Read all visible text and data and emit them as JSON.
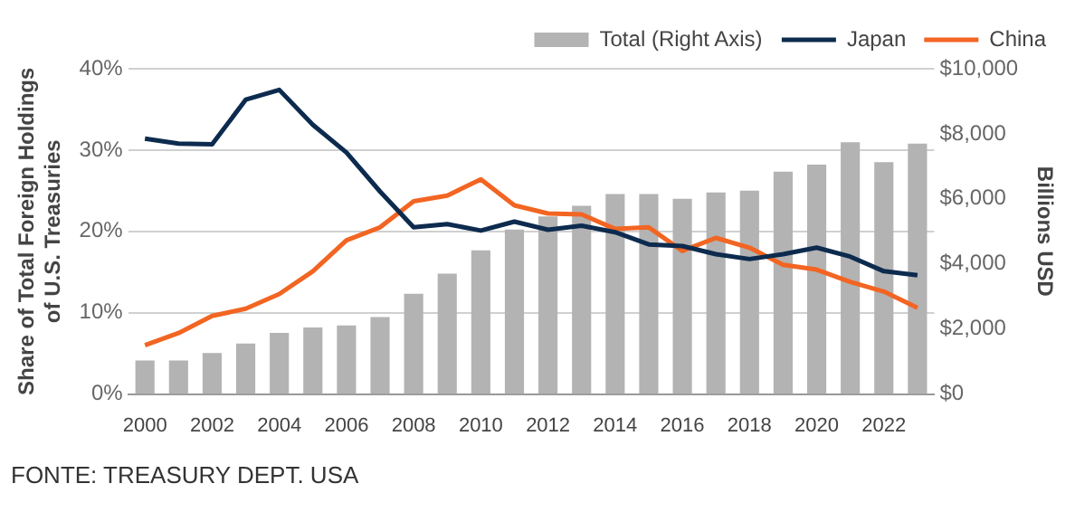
{
  "chart_data": {
    "type": "bar",
    "ylabel": "Share of Total Foreign Holdings of U.S. Treasuries",
    "y2label": "Billions USD",
    "categories": [
      "2000",
      null,
      "2002",
      null,
      "2004",
      null,
      "2006",
      null,
      "2008",
      null,
      "2010",
      null,
      "2012",
      null,
      "2014",
      null,
      "2016",
      null,
      "2018",
      null,
      "2020",
      null,
      "2022",
      null
    ],
    "series": [
      {
        "name": "Total (Right Axis)",
        "axis": "y2",
        "color": "#b3b3b3",
        "values": [
          1030,
          1030,
          1260,
          1550,
          1880,
          2050,
          2110,
          2370,
          3080,
          3700,
          4420,
          5060,
          5460,
          5790,
          6150,
          6150,
          6000,
          6200,
          6250,
          6840,
          7050,
          7740,
          7130,
          7700
        ]
      },
      {
        "name": "Japan",
        "type": "line",
        "color": "#0d2b4e",
        "values": [
          31.4,
          30.8,
          30.7,
          36.2,
          37.4,
          33.1,
          29.7,
          24.9,
          20.5,
          20.9,
          20.1,
          21.2,
          20.2,
          20.7,
          19.9,
          18.4,
          18.2,
          17.2,
          16.6,
          17.2,
          18.0,
          16.9,
          15.1,
          14.6
        ]
      },
      {
        "name": "China",
        "type": "line",
        "color": "#f26522",
        "values": [
          6.0,
          7.5,
          9.6,
          10.5,
          12.3,
          15.1,
          18.9,
          20.5,
          23.7,
          24.4,
          26.4,
          23.2,
          22.2,
          22.1,
          20.3,
          20.5,
          17.6,
          19.2,
          18.0,
          15.9,
          15.3,
          13.8,
          12.6,
          10.6
        ]
      }
    ],
    "ylim": [
      0,
      40
    ],
    "yticks": [
      {
        "value": 0,
        "label": "0%"
      },
      {
        "value": 10,
        "label": "10%"
      },
      {
        "value": 20,
        "label": "20%"
      },
      {
        "value": 30,
        "label": "30%"
      },
      {
        "value": 40,
        "label": "40%"
      }
    ],
    "y2lim": [
      0,
      10000
    ],
    "y2ticks": [
      {
        "value": 0,
        "label": "$0"
      },
      {
        "value": 2000,
        "label": "$2,000"
      },
      {
        "value": 4000,
        "label": "$4,000"
      },
      {
        "value": 6000,
        "label": "$6,000"
      },
      {
        "value": 8000,
        "label": "$8,000"
      },
      {
        "value": 10000,
        "label": "$10,000"
      }
    ],
    "grid": "y",
    "legend": "top right",
    "marker": "none",
    "annotations": [
      "FONTE: TREASURY DEPT. USA"
    ]
  }
}
